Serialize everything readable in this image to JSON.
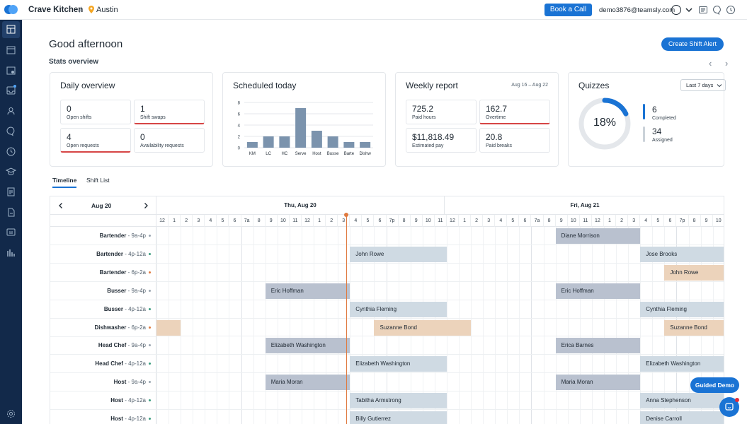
{
  "topbar": {
    "company": "Crave Kitchen",
    "separator": "/",
    "location": "Austin",
    "book_label": "Book a Call",
    "email": "demo3876@teamsly.com"
  },
  "page": {
    "greeting": "Good afternoon",
    "stats_title": "Stats overview",
    "create_alert": "Create Shift Alert"
  },
  "daily": {
    "title": "Daily overview",
    "stats": [
      {
        "value": "0",
        "label": "Open shifts"
      },
      {
        "value": "1",
        "label": "Shift swaps"
      },
      {
        "value": "4",
        "label": "Open requests"
      },
      {
        "value": "0",
        "label": "Availability requests"
      }
    ]
  },
  "scheduled": {
    "title": "Scheduled today"
  },
  "chart_data": {
    "type": "bar",
    "title": "Scheduled today",
    "categories": [
      "KM",
      "LC",
      "HC",
      "Serve",
      "Host",
      "Busse",
      "Barte",
      "Dishw"
    ],
    "values": [
      1,
      2,
      2,
      7,
      3,
      2,
      1,
      1
    ],
    "yticks": [
      "0",
      "2",
      "4",
      "6",
      "8"
    ],
    "ylim": [
      0,
      8
    ],
    "bar_color": "#7b93ad",
    "grid": true
  },
  "weekly": {
    "title": "Weekly report",
    "dates": "Aug 16 – Aug 22",
    "stats": [
      {
        "value": "725.2",
        "label": "Paid hours"
      },
      {
        "value": "162.7",
        "label": "Overtime"
      },
      {
        "value": "$11,818.49",
        "label": "Estimated pay"
      },
      {
        "value": "20.8",
        "label": "Paid breaks"
      }
    ]
  },
  "quizzes": {
    "title": "Quizzes",
    "period": "Last 7 days",
    "percent": "18%",
    "percent_value": 0.18,
    "completed_value": "6",
    "completed_label": "Completed",
    "assigned_value": "34",
    "assigned_label": "Assigned",
    "ring_color": "#1a73d4"
  },
  "tabs": {
    "timeline": "Timeline",
    "shift_list": "Shift List"
  },
  "timeline": {
    "date": "Aug 20",
    "day1": "Thu, Aug 20",
    "day2": "Fri, Aug 21",
    "hours": [
      "12",
      "1",
      "2",
      "3",
      "4",
      "5",
      "6",
      "7a",
      "8",
      "9",
      "10",
      "11",
      "12",
      "1",
      "2",
      "3",
      "4",
      "5",
      "6",
      "7p",
      "8",
      "9",
      "10",
      "11",
      "12",
      "1",
      "2",
      "3",
      "4",
      "5",
      "6",
      "7a",
      "8",
      "9",
      "10",
      "11",
      "12",
      "1",
      "2",
      "3",
      "4",
      "5",
      "6",
      "7p",
      "8",
      "9",
      "10"
    ],
    "rows": [
      {
        "role": "Bartender",
        "time": "9a-4p",
        "dot": "#9aa5b1"
      },
      {
        "role": "Bartender",
        "time": "4p-12a",
        "dot": "#3a9d7f"
      },
      {
        "role": "Bartender",
        "time": "6p-2a",
        "dot": "#e07a3f"
      },
      {
        "role": "Busser",
        "time": "9a-4p",
        "dot": "#9aa5b1"
      },
      {
        "role": "Busser",
        "time": "4p-12a",
        "dot": "#3a9d7f"
      },
      {
        "role": "Dishwasher",
        "time": "6p-2a",
        "dot": "#e07a3f"
      },
      {
        "role": "Head Chef",
        "time": "9a-4p",
        "dot": "#9aa5b1"
      },
      {
        "role": "Head Chef",
        "time": "4p-12a",
        "dot": "#3a9d7f"
      },
      {
        "role": "Host",
        "time": "9a-4p",
        "dot": "#9aa5b1"
      },
      {
        "role": "Host",
        "time": "4p-12a",
        "dot": "#3a9d7f"
      },
      {
        "role": "Host",
        "time": "4p-12a",
        "dot": "#3a9d7f"
      }
    ],
    "shifts": [
      {
        "row": 0,
        "start": 33,
        "end": 40,
        "name": "Diane Morrison",
        "color": "#b9c1cf"
      },
      {
        "row": 1,
        "start": 16,
        "end": 24,
        "name": "John Rowe",
        "color": "#cfdae3"
      },
      {
        "row": 1,
        "start": 40,
        "end": 48,
        "name": "Jose Brooks",
        "color": "#cfdae3"
      },
      {
        "row": 2,
        "start": 42,
        "end": 50,
        "name": "John Rowe",
        "color": "#ecd3bb"
      },
      {
        "row": 3,
        "start": 9,
        "end": 16,
        "name": "Eric Hoffman",
        "color": "#b9c1cf"
      },
      {
        "row": 3,
        "start": 33,
        "end": 40,
        "name": "Eric Hoffman",
        "color": "#b9c1cf"
      },
      {
        "row": 4,
        "start": 16,
        "end": 24,
        "name": "Cynthia Fleming",
        "color": "#cfdae3"
      },
      {
        "row": 4,
        "start": 40,
        "end": 48,
        "name": "Cynthia Fleming",
        "color": "#cfdae3"
      },
      {
        "row": 5,
        "start": -6,
        "end": 2,
        "name": "",
        "color": "#ecd3bb"
      },
      {
        "row": 5,
        "start": 18,
        "end": 26,
        "name": "Suzanne Bond",
        "color": "#ecd3bb"
      },
      {
        "row": 5,
        "start": 42,
        "end": 50,
        "name": "Suzanne Bond",
        "color": "#ecd3bb"
      },
      {
        "row": 6,
        "start": 9,
        "end": 16,
        "name": "Elizabeth Washington",
        "color": "#b9c1cf"
      },
      {
        "row": 6,
        "start": 33,
        "end": 40,
        "name": "Erica Barnes",
        "color": "#b9c1cf"
      },
      {
        "row": 7,
        "start": 16,
        "end": 24,
        "name": "Elizabeth Washington",
        "color": "#cfdae3"
      },
      {
        "row": 7,
        "start": 40,
        "end": 48,
        "name": "Elizabeth Washington",
        "color": "#cfdae3"
      },
      {
        "row": 8,
        "start": 9,
        "end": 16,
        "name": "Maria Moran",
        "color": "#b9c1cf"
      },
      {
        "row": 8,
        "start": 33,
        "end": 40,
        "name": "Maria Moran",
        "color": "#b9c1cf"
      },
      {
        "row": 9,
        "start": 16,
        "end": 24,
        "name": "Tabitha Armstrong",
        "color": "#cfdae3"
      },
      {
        "row": 9,
        "start": 40,
        "end": 48,
        "name": "Anna Stephenson",
        "color": "#cfdae3"
      },
      {
        "row": 10,
        "start": 16,
        "end": 24,
        "name": "Billy Gutierrez",
        "color": "#cfdae3"
      },
      {
        "row": 10,
        "start": 40,
        "end": 48,
        "name": "Denise Carroll",
        "color": "#cfdae3"
      }
    ]
  },
  "guided_demo": "Guided Demo"
}
